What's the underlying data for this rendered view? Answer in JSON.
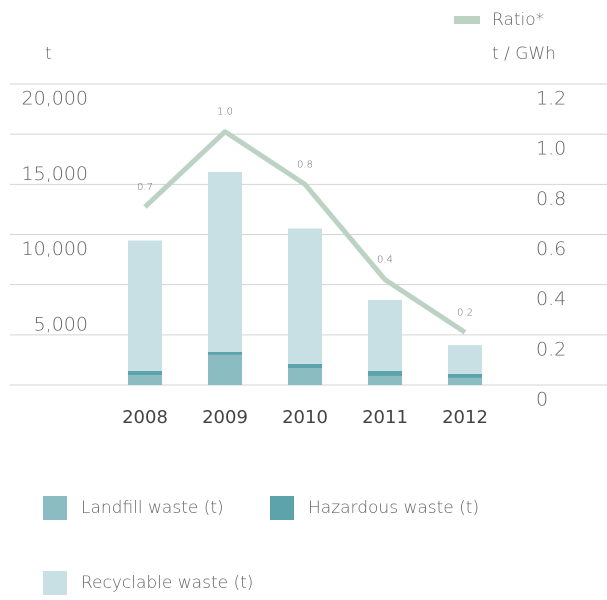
{
  "chart_data": {
    "type": "bar",
    "y_label": "t",
    "y2_label": "t / GWh",
    "categories": [
      "2008",
      "2009",
      "2010",
      "2011",
      "2012"
    ],
    "series": [
      {
        "name": "Landfill waste (t)",
        "color": "#8bbcc2",
        "values": [
          660,
          2000,
          1130,
          600,
          470
        ]
      },
      {
        "name": "Hazardous waste (t)",
        "color": "#5da3ab",
        "values": [
          270,
          200,
          270,
          330,
          270
        ]
      },
      {
        "name": "Recyclable waste (t)",
        "color": "#c8e0e3",
        "values": [
          8670,
          11950,
          9000,
          4720,
          1910
        ]
      },
      {
        "name": "Ratio*",
        "color": "#bcd3c4",
        "axis": "y2",
        "type": "line",
        "values": [
          0.71,
          1.01,
          0.8,
          0.42,
          0.21
        ],
        "value_labels": [
          "0.7",
          "1.0",
          "0.8",
          "0.4",
          "0.2"
        ]
      }
    ],
    "ylim": [
      0,
      20000
    ],
    "yticks": [
      {
        "value": 5000,
        "label": "5,000"
      },
      {
        "value": 10000,
        "label": "10,000"
      },
      {
        "value": 15000,
        "label": "15,000"
      },
      {
        "value": 20000,
        "label": "20,000"
      }
    ],
    "y2lim": [
      0,
      1.2
    ],
    "y2ticks": [
      0,
      0.2,
      0.4,
      0.6,
      {
        "value": 0.8,
        "label": "0.8"
      },
      {
        "value": 1,
        "label": "1.0"
      },
      1.2
    ],
    "grid": true
  }
}
